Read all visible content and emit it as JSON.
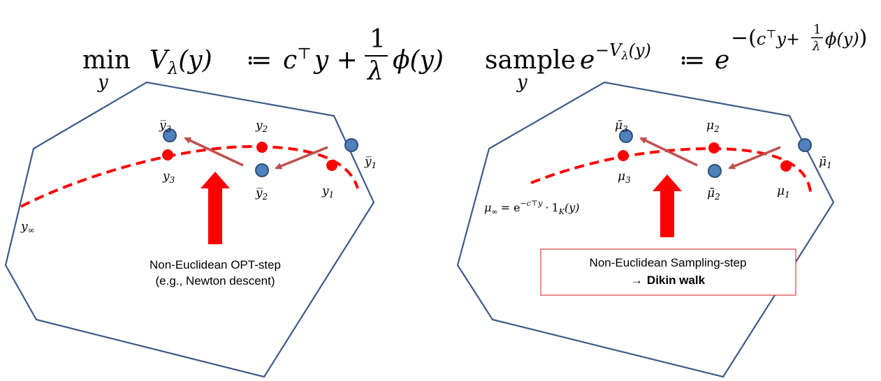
{
  "left": {
    "formula": {
      "min": "min",
      "under": "y",
      "lhs": "V",
      "lhs_sub": "λ",
      "lhs_arg": "(y)",
      "assign": "≔",
      "term1": "c",
      "sup": "⊤",
      "term1b": "y +",
      "num": "1",
      "den": "λ",
      "phi": "ϕ(y)"
    },
    "labels": {
      "ybar3": "y̅",
      "ybar3_sub": "3",
      "y2": "y",
      "y2_sub": "2",
      "ybar1": "y̅",
      "ybar1_sub": "1",
      "y3": "y",
      "y3_sub": "3",
      "ybar2": "y̅",
      "ybar2_sub": "2",
      "y1": "y",
      "y1_sub": "1",
      "yinf": "y",
      "yinf_sub": "∞"
    },
    "caption_line1": "Non-Euclidean OPT-step",
    "caption_line2": "(e.g., Newton descent)"
  },
  "right": {
    "formula": {
      "word": "sample",
      "under": "y",
      "e": "e",
      "exp_neg": "−",
      "exp_V": "V",
      "exp_sub": "λ",
      "exp_arg": "(y)",
      "assign": "≔",
      "e2": "e",
      "exp2_open": "−(",
      "exp2_c": "c",
      "exp2_sup": "⊤",
      "exp2_y": "y+",
      "exp2_num": "1",
      "exp2_den": "λ",
      "exp2_phi": "ϕ(y)",
      "exp2_close": ")"
    },
    "labels": {
      "mubar3": "μ̄",
      "mubar3_sub": "3",
      "mu2": "μ",
      "mu2_sub": "2",
      "mubar1": "μ̄",
      "mubar1_sub": "1",
      "mu3": "μ",
      "mu3_sub": "3",
      "mubar2": "μ̄",
      "mubar2_sub": "2",
      "mu1": "μ",
      "mu1_sub": "1",
      "muinf": "μ",
      "muinf_sub": "∞",
      "muinf_eq": "= e",
      "muinf_exp": "−c⊤y",
      "muinf_dot": "·",
      "muinf_one": "1",
      "muinf_one_sub": "K",
      "muinf_arg": "(y)"
    },
    "caption_line1": "Non-Euclidean Sampling-step",
    "caption_arrow": "→",
    "caption_line2": "Dikin walk",
    "caption_border_color": "#e0403f"
  },
  "colors": {
    "polygon": "#3b5b8a",
    "red": "#ff0000",
    "blue_fill": "#4f81bd",
    "blue_stroke": "#2e4f7a",
    "arrow": "#c0504d"
  }
}
